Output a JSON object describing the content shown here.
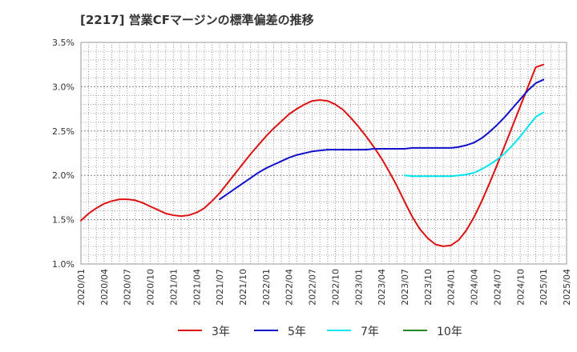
{
  "chart_data": {
    "type": "line",
    "title": "[2217]  営業CFマージンの標準偏差の推移",
    "xlabel": "",
    "ylabel": "",
    "ylim": [
      1.0,
      3.5
    ],
    "yticks": [
      "1.0%",
      "1.5%",
      "2.0%",
      "2.5%",
      "3.0%",
      "3.5%"
    ],
    "yticks_values": [
      1.0,
      1.5,
      2.0,
      2.5,
      3.0,
      3.5
    ],
    "xticks": [
      "2020/01",
      "2020/04",
      "2020/07",
      "2020/10",
      "2021/01",
      "2021/04",
      "2021/07",
      "2021/10",
      "2022/01",
      "2022/04",
      "2022/07",
      "2022/10",
      "2023/01",
      "2023/04",
      "2023/07",
      "2023/10",
      "2024/01",
      "2024/04",
      "2024/07",
      "2024/10",
      "2025/01",
      "2025/04"
    ],
    "grid": true,
    "legend_position": "bottom",
    "series": [
      {
        "name": "3年",
        "color": "#dd1111",
        "points": [
          [
            "2020/01",
            1.49
          ],
          [
            "2020/02",
            1.57
          ],
          [
            "2020/03",
            1.63
          ],
          [
            "2020/04",
            1.68
          ],
          [
            "2020/05",
            1.71
          ],
          [
            "2020/06",
            1.73
          ],
          [
            "2020/07",
            1.73
          ],
          [
            "2020/08",
            1.72
          ],
          [
            "2020/09",
            1.69
          ],
          [
            "2020/10",
            1.65
          ],
          [
            "2020/11",
            1.61
          ],
          [
            "2020/12",
            1.57
          ],
          [
            "2021/01",
            1.55
          ],
          [
            "2021/02",
            1.54
          ],
          [
            "2021/03",
            1.55
          ],
          [
            "2021/04",
            1.58
          ],
          [
            "2021/05",
            1.63
          ],
          [
            "2021/06",
            1.71
          ],
          [
            "2021/07",
            1.8
          ],
          [
            "2021/08",
            1.91
          ],
          [
            "2021/09",
            2.02
          ],
          [
            "2021/10",
            2.13
          ],
          [
            "2021/11",
            2.24
          ],
          [
            "2021/12",
            2.34
          ],
          [
            "2022/01",
            2.44
          ],
          [
            "2022/02",
            2.53
          ],
          [
            "2022/03",
            2.61
          ],
          [
            "2022/04",
            2.69
          ],
          [
            "2022/05",
            2.75
          ],
          [
            "2022/06",
            2.8
          ],
          [
            "2022/07",
            2.84
          ],
          [
            "2022/08",
            2.85
          ],
          [
            "2022/09",
            2.84
          ],
          [
            "2022/10",
            2.8
          ],
          [
            "2022/11",
            2.74
          ],
          [
            "2022/12",
            2.65
          ],
          [
            "2023/01",
            2.55
          ],
          [
            "2023/02",
            2.44
          ],
          [
            "2023/03",
            2.32
          ],
          [
            "2023/04",
            2.19
          ],
          [
            "2023/05",
            2.04
          ],
          [
            "2023/06",
            1.88
          ],
          [
            "2023/07",
            1.7
          ],
          [
            "2023/08",
            1.53
          ],
          [
            "2023/09",
            1.39
          ],
          [
            "2023/10",
            1.29
          ],
          [
            "2023/11",
            1.22
          ],
          [
            "2023/12",
            1.2
          ],
          [
            "2024/01",
            1.21
          ],
          [
            "2024/02",
            1.27
          ],
          [
            "2024/03",
            1.38
          ],
          [
            "2024/04",
            1.53
          ],
          [
            "2024/05",
            1.71
          ],
          [
            "2024/06",
            1.91
          ],
          [
            "2024/07",
            2.12
          ],
          [
            "2024/08",
            2.34
          ],
          [
            "2024/09",
            2.56
          ],
          [
            "2024/10",
            2.78
          ],
          [
            "2024/11",
            3.0
          ],
          [
            "2024/12",
            3.22
          ],
          [
            "2025/01",
            3.25
          ]
        ]
      },
      {
        "name": "5年",
        "color": "#1111cc",
        "points": [
          [
            "2021/07",
            1.73
          ],
          [
            "2021/08",
            1.79
          ],
          [
            "2021/09",
            1.85
          ],
          [
            "2021/10",
            1.91
          ],
          [
            "2021/11",
            1.97
          ],
          [
            "2021/12",
            2.03
          ],
          [
            "2022/01",
            2.08
          ],
          [
            "2022/02",
            2.12
          ],
          [
            "2022/03",
            2.16
          ],
          [
            "2022/04",
            2.2
          ],
          [
            "2022/05",
            2.23
          ],
          [
            "2022/06",
            2.25
          ],
          [
            "2022/07",
            2.27
          ],
          [
            "2022/08",
            2.28
          ],
          [
            "2022/09",
            2.29
          ],
          [
            "2022/10",
            2.29
          ],
          [
            "2022/11",
            2.29
          ],
          [
            "2022/12",
            2.29
          ],
          [
            "2023/01",
            2.29
          ],
          [
            "2023/02",
            2.29
          ],
          [
            "2023/03",
            2.3
          ],
          [
            "2023/04",
            2.3
          ],
          [
            "2023/05",
            2.3
          ],
          [
            "2023/06",
            2.3
          ],
          [
            "2023/07",
            2.3
          ],
          [
            "2023/08",
            2.31
          ],
          [
            "2023/09",
            2.31
          ],
          [
            "2023/10",
            2.31
          ],
          [
            "2023/11",
            2.31
          ],
          [
            "2023/12",
            2.31
          ],
          [
            "2024/01",
            2.31
          ],
          [
            "2024/02",
            2.32
          ],
          [
            "2024/03",
            2.34
          ],
          [
            "2024/04",
            2.37
          ],
          [
            "2024/05",
            2.42
          ],
          [
            "2024/06",
            2.49
          ],
          [
            "2024/07",
            2.57
          ],
          [
            "2024/08",
            2.66
          ],
          [
            "2024/09",
            2.76
          ],
          [
            "2024/10",
            2.86
          ],
          [
            "2024/11",
            2.96
          ],
          [
            "2024/12",
            3.04
          ],
          [
            "2025/01",
            3.08
          ]
        ]
      },
      {
        "name": "7年",
        "color": "#00e5ee",
        "points": [
          [
            "2023/07",
            2.0
          ],
          [
            "2023/08",
            1.99
          ],
          [
            "2023/09",
            1.99
          ],
          [
            "2023/10",
            1.99
          ],
          [
            "2023/11",
            1.99
          ],
          [
            "2023/12",
            1.99
          ],
          [
            "2024/01",
            1.99
          ],
          [
            "2024/02",
            2.0
          ],
          [
            "2024/03",
            2.01
          ],
          [
            "2024/04",
            2.03
          ],
          [
            "2024/05",
            2.07
          ],
          [
            "2024/06",
            2.12
          ],
          [
            "2024/07",
            2.18
          ],
          [
            "2024/08",
            2.25
          ],
          [
            "2024/09",
            2.34
          ],
          [
            "2024/10",
            2.44
          ],
          [
            "2024/11",
            2.55
          ],
          [
            "2024/12",
            2.66
          ],
          [
            "2025/01",
            2.71
          ]
        ]
      },
      {
        "name": "10年",
        "color": "#228822",
        "points": []
      }
    ]
  }
}
